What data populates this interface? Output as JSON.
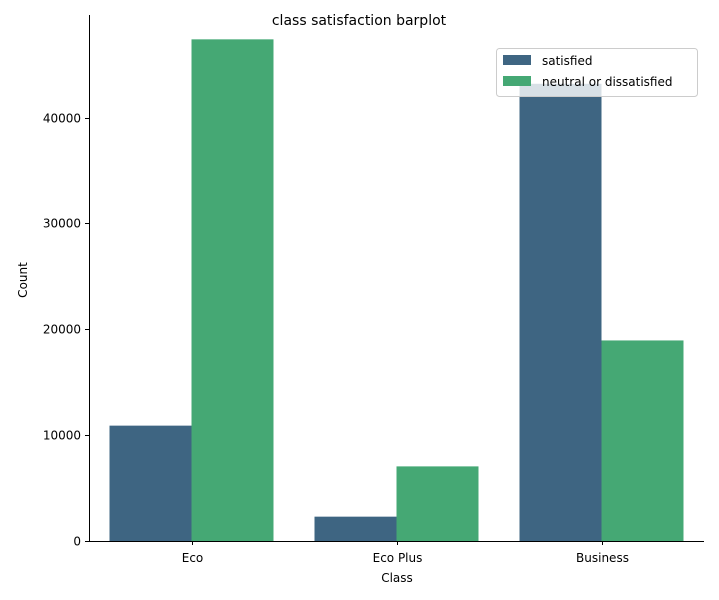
{
  "chart_data": {
    "type": "bar",
    "title": "class satisfaction barplot",
    "xlabel": "Class",
    "ylabel": "Count",
    "categories": [
      "Eco",
      "Eco Plus",
      "Business"
    ],
    "series": [
      {
        "name": "satisfied",
        "color": "#3e6582",
        "values": [
          10900,
          2300,
          43200
        ]
      },
      {
        "name": "neutral or dissatisfied",
        "color": "#45a874",
        "values": [
          47400,
          7050,
          18950
        ]
      }
    ],
    "ylim": [
      0,
      49700
    ],
    "yticks": [
      0,
      10000,
      20000,
      30000,
      40000
    ],
    "ytick_labels": [
      "0",
      "10000",
      "20000",
      "30000",
      "40000"
    ],
    "grid": false,
    "legend_position": "top-right"
  }
}
